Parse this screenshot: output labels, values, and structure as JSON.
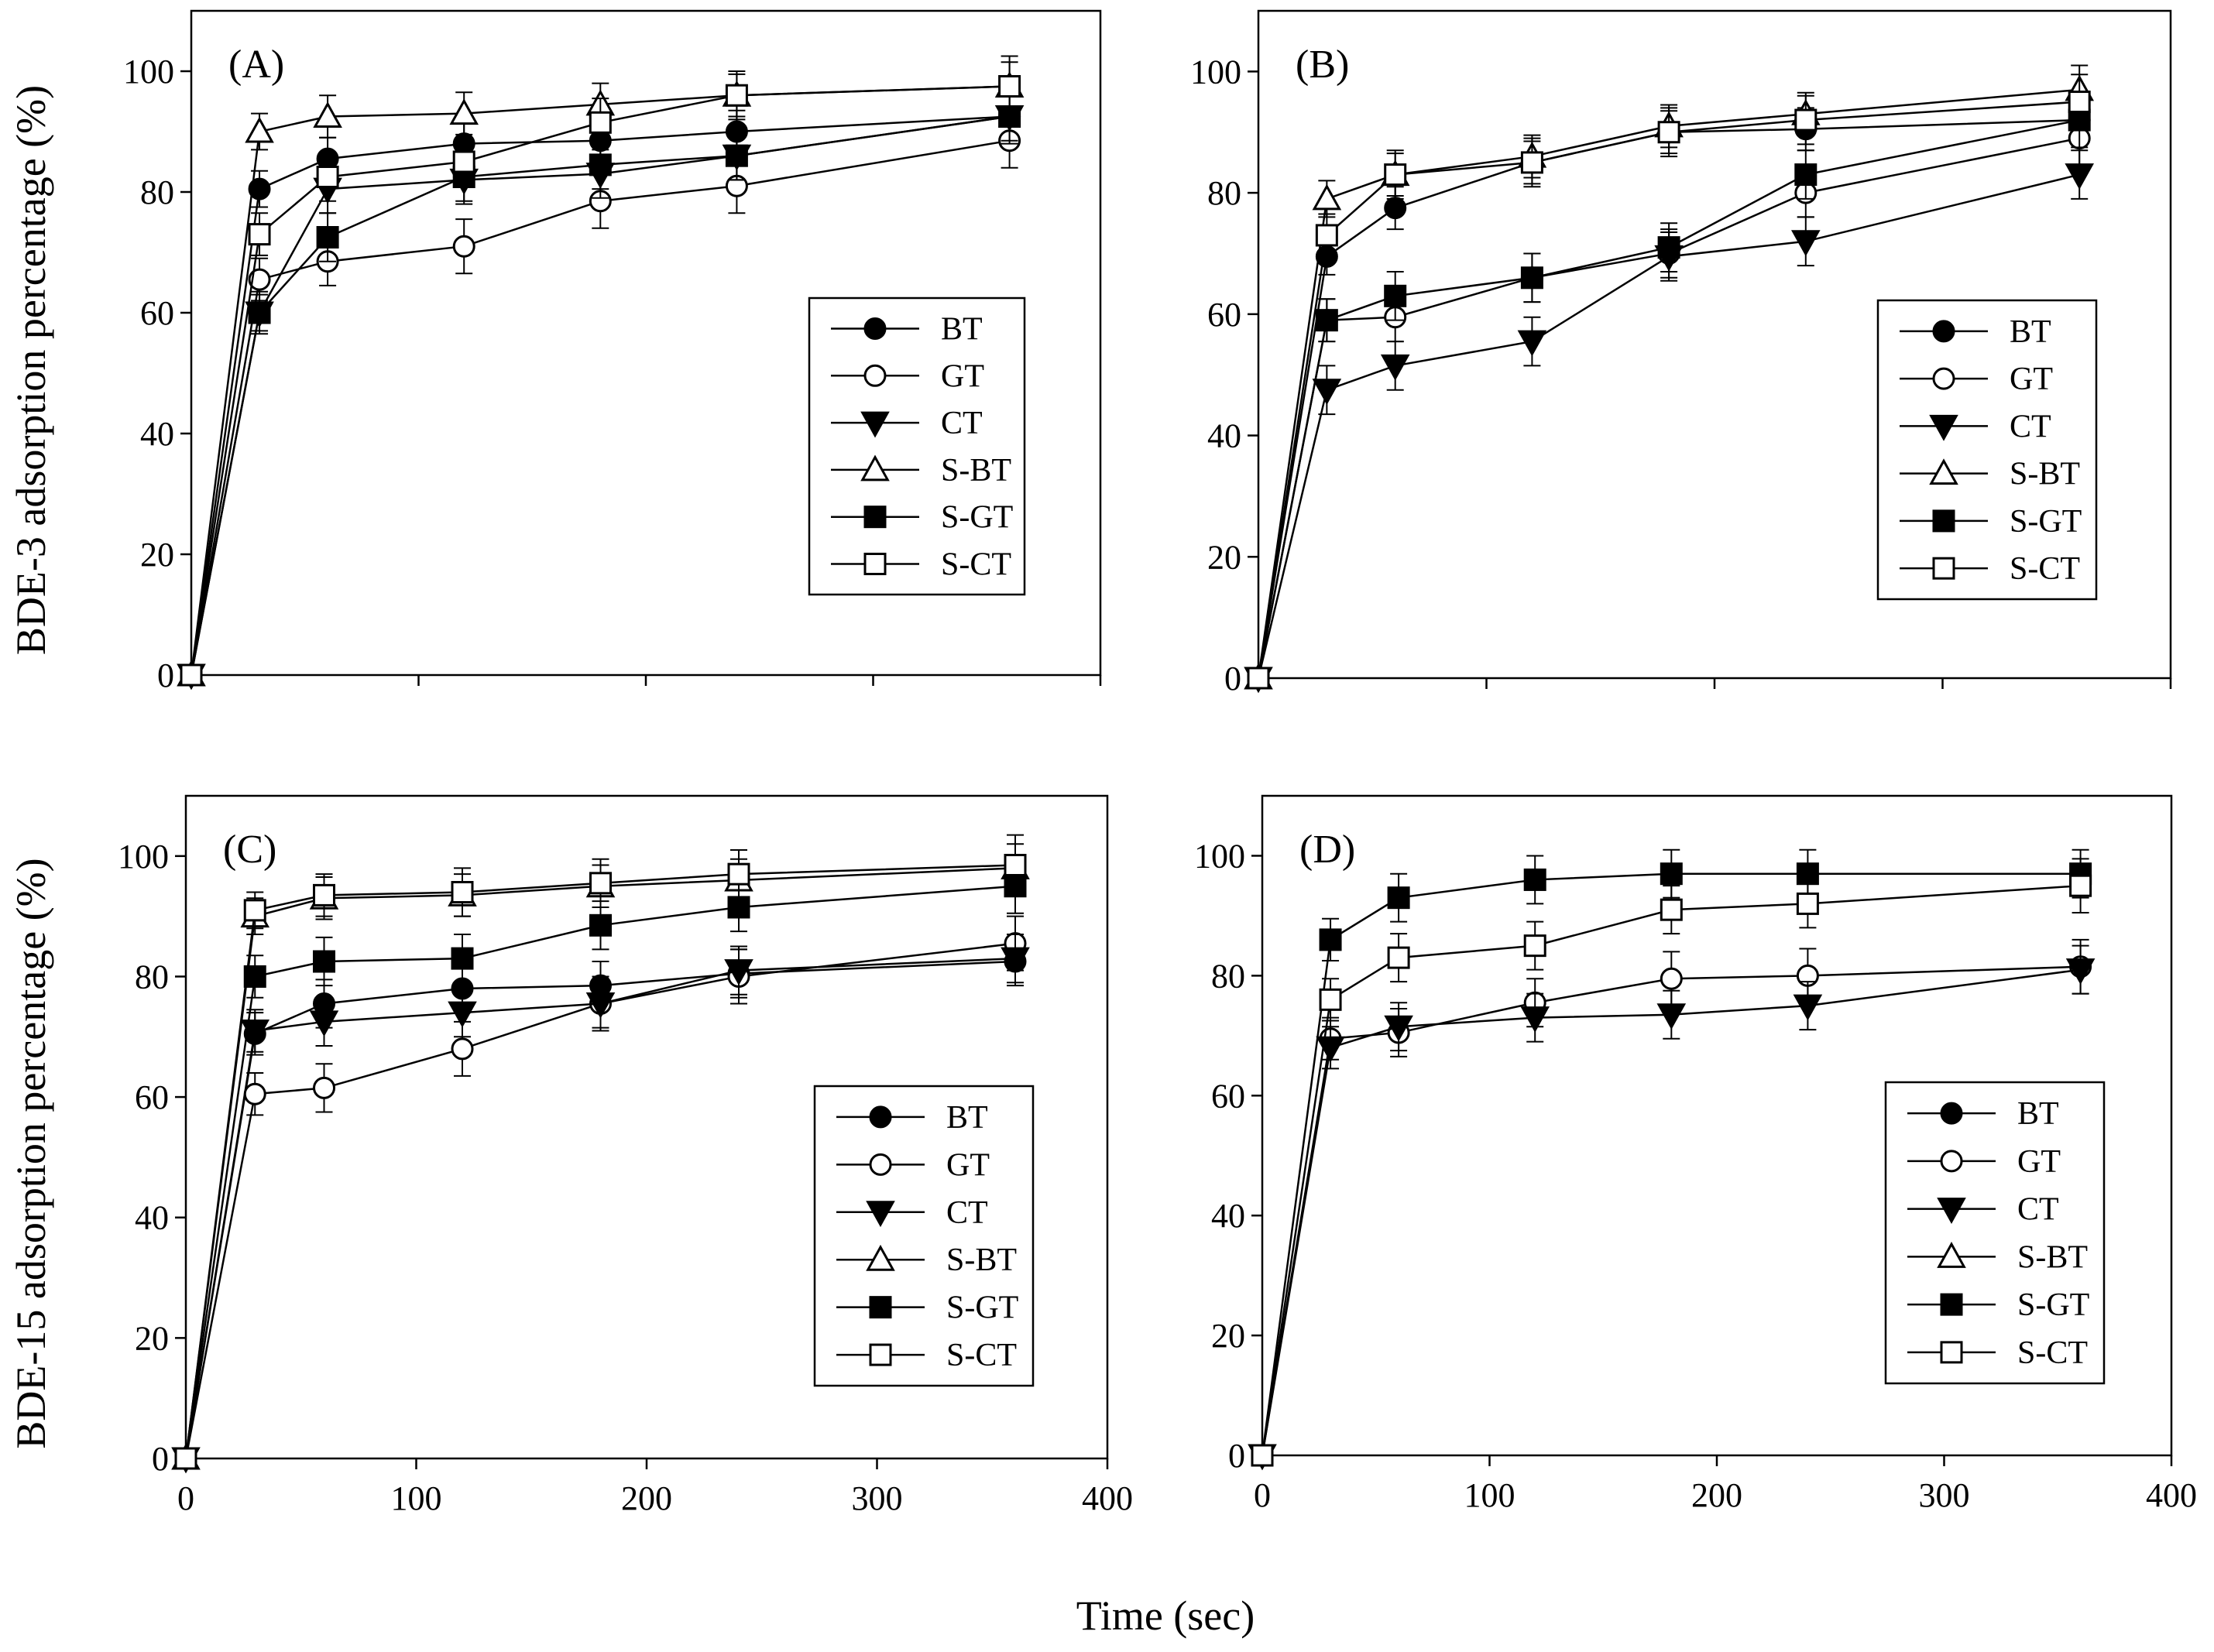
{
  "figure": {
    "xlabel": "Time (sec)",
    "ylabel_top": "BDE-3 adsorption percentage (%)",
    "ylabel_bottom": "BDE-15 adsorption percentage (%)"
  },
  "chart_data": [
    {
      "type": "line",
      "panel": "(A)",
      "xlim": [
        0,
        400
      ],
      "ylim": [
        0,
        110
      ],
      "xticks": [
        0,
        100,
        200,
        300,
        400
      ],
      "yticks": [
        0,
        20,
        40,
        60,
        80,
        100
      ],
      "show_x_tick_labels": false,
      "x": [
        0,
        30,
        60,
        120,
        180,
        240,
        360
      ],
      "series": [
        {
          "name": "BT",
          "marker": "circle-filled",
          "values": [
            0,
            80.5,
            85.5,
            88,
            88.5,
            90,
            92.5
          ],
          "errors": [
            0,
            3,
            3.5,
            3.5,
            3.5,
            3.5,
            4
          ]
        },
        {
          "name": "GT",
          "marker": "circle-open",
          "values": [
            0,
            65.5,
            68.5,
            71,
            78.5,
            81,
            88.5
          ],
          "errors": [
            0,
            3.5,
            4,
            4.5,
            4.5,
            4.5,
            4.5
          ]
        },
        {
          "name": "CT",
          "marker": "triangle-down-filled",
          "values": [
            0,
            60,
            80.5,
            82,
            83,
            86,
            92.5
          ],
          "errors": [
            0,
            3,
            4,
            4,
            4,
            4,
            4
          ]
        },
        {
          "name": "S-BT",
          "marker": "triangle-up-open",
          "values": [
            0,
            90,
            92.5,
            93,
            94.5,
            96,
            97.5
          ],
          "errors": [
            0,
            3,
            3.5,
            3.5,
            3.5,
            3.5,
            4
          ]
        },
        {
          "name": "S-GT",
          "marker": "square-filled",
          "values": [
            0,
            60,
            72.5,
            82.5,
            84.5,
            86,
            92.5
          ],
          "errors": [
            0,
            3.5,
            4,
            4,
            4,
            4,
            4.5
          ]
        },
        {
          "name": "S-CT",
          "marker": "square-open",
          "values": [
            0,
            73,
            82.5,
            85,
            91.5,
            96,
            97.5
          ],
          "errors": [
            0,
            3.5,
            4,
            4,
            4,
            4,
            5
          ]
        }
      ],
      "legend": [
        "BT",
        "GT",
        "CT",
        "S-BT",
        "S-GT",
        "S-CT"
      ]
    },
    {
      "type": "line",
      "panel": "(B)",
      "xlim": [
        0,
        400
      ],
      "ylim": [
        0,
        110
      ],
      "xticks": [
        0,
        100,
        200,
        300,
        400
      ],
      "yticks": [
        0,
        20,
        40,
        60,
        80,
        100
      ],
      "show_x_tick_labels": false,
      "x": [
        0,
        30,
        60,
        120,
        180,
        240,
        360
      ],
      "series": [
        {
          "name": "BT",
          "marker": "circle-filled",
          "values": [
            0,
            69.5,
            77.5,
            85,
            90,
            90.5,
            92
          ],
          "errors": [
            0,
            3,
            3.5,
            3.5,
            3.5,
            3.5,
            4
          ]
        },
        {
          "name": "GT",
          "marker": "circle-open",
          "values": [
            0,
            59,
            59.5,
            66,
            70,
            80,
            89
          ],
          "errors": [
            0,
            3.5,
            4,
            4,
            4,
            4,
            4.5
          ]
        },
        {
          "name": "CT",
          "marker": "triangle-down-filled",
          "values": [
            0,
            47.5,
            51.5,
            55.5,
            69.5,
            72,
            83
          ],
          "errors": [
            0,
            4,
            4,
            4,
            4,
            4,
            4
          ]
        },
        {
          "name": "S-BT",
          "marker": "triangle-up-open",
          "values": [
            0,
            79,
            83,
            86,
            91,
            93,
            97
          ],
          "errors": [
            0,
            3,
            3.5,
            3.5,
            3.5,
            3.5,
            4
          ]
        },
        {
          "name": "S-GT",
          "marker": "square-filled",
          "values": [
            0,
            59,
            63,
            66,
            71,
            83,
            92
          ],
          "errors": [
            0,
            3.5,
            4,
            4,
            4,
            4,
            4.5
          ]
        },
        {
          "name": "S-CT",
          "marker": "square-open",
          "values": [
            0,
            73,
            83,
            85,
            90,
            92,
            95
          ],
          "errors": [
            0,
            3.5,
            4,
            4,
            4,
            4,
            4.5
          ]
        }
      ],
      "legend": [
        "BT",
        "GT",
        "CT",
        "S-BT",
        "S-GT",
        "S-CT"
      ]
    },
    {
      "type": "line",
      "panel": "(C)",
      "xlim": [
        0,
        400
      ],
      "ylim": [
        0,
        110
      ],
      "xticks": [
        0,
        100,
        200,
        300,
        400
      ],
      "yticks": [
        0,
        20,
        40,
        60,
        80,
        100
      ],
      "show_x_tick_labels": true,
      "x": [
        0,
        30,
        60,
        120,
        180,
        240,
        360
      ],
      "series": [
        {
          "name": "BT",
          "marker": "circle-filled",
          "values": [
            0,
            70.5,
            75.5,
            78,
            78.5,
            80.5,
            82.5
          ],
          "errors": [
            0,
            3.5,
            4,
            4,
            4,
            4,
            4
          ]
        },
        {
          "name": "GT",
          "marker": "circle-open",
          "values": [
            0,
            60.5,
            61.5,
            68,
            75.5,
            80,
            85.5
          ],
          "errors": [
            0,
            3.5,
            4,
            4.5,
            4.5,
            4.5,
            4.5
          ]
        },
        {
          "name": "CT",
          "marker": "triangle-down-filled",
          "values": [
            0,
            71,
            72.5,
            74,
            75.5,
            81,
            83
          ],
          "errors": [
            0,
            3.5,
            4,
            4,
            4,
            4,
            4
          ]
        },
        {
          "name": "S-BT",
          "marker": "triangle-up-open",
          "values": [
            0,
            90,
            93,
            93.5,
            95,
            96,
            98
          ],
          "errors": [
            0,
            3,
            3.5,
            3.5,
            3.5,
            3.5,
            4
          ]
        },
        {
          "name": "S-GT",
          "marker": "square-filled",
          "values": [
            0,
            80,
            82.5,
            83,
            88.5,
            91.5,
            95
          ],
          "errors": [
            0,
            3.5,
            4,
            4,
            4,
            4,
            4.5
          ]
        },
        {
          "name": "S-CT",
          "marker": "square-open",
          "values": [
            0,
            91,
            93.5,
            94,
            95.5,
            97,
            98.5
          ],
          "errors": [
            0,
            3,
            3.5,
            4,
            4,
            4,
            5
          ]
        }
      ],
      "legend": [
        "BT",
        "GT",
        "CT",
        "S-BT",
        "S-GT",
        "S-CT"
      ]
    },
    {
      "type": "line",
      "panel": "(D)",
      "xlim": [
        0,
        400
      ],
      "ylim": [
        0,
        110
      ],
      "xticks": [
        0,
        100,
        200,
        300,
        400
      ],
      "yticks": [
        0,
        20,
        40,
        60,
        80,
        100
      ],
      "show_x_tick_labels": true,
      "x": [
        0,
        30,
        60,
        120,
        180,
        240,
        360
      ],
      "series": [
        {
          "name": "GT",
          "marker": "circle-open",
          "values": [
            0,
            69.5,
            70.5,
            75.5,
            79.5,
            80,
            81.5
          ],
          "errors": [
            0,
            3.5,
            4,
            4,
            4.5,
            4.5,
            4.5
          ]
        },
        {
          "name": "CT",
          "marker": "triangle-down-filled",
          "values": [
            0,
            68,
            71.5,
            73,
            73.5,
            75,
            81
          ],
          "errors": [
            0,
            3.5,
            4,
            4,
            4,
            4,
            4
          ]
        },
        {
          "name": "S-GT",
          "marker": "square-filled",
          "values": [
            0,
            86,
            93,
            96,
            97,
            97,
            97
          ],
          "errors": [
            0,
            3.5,
            4,
            4,
            4,
            4,
            4
          ]
        },
        {
          "name": "S-CT",
          "marker": "square-open",
          "values": [
            0,
            76,
            83,
            85,
            91,
            92,
            95
          ],
          "errors": [
            0,
            3.5,
            4,
            4,
            4,
            4,
            4.5
          ]
        }
      ],
      "legend": [
        "BT",
        "GT",
        "CT",
        "S-BT",
        "S-GT",
        "S-CT"
      ]
    }
  ]
}
